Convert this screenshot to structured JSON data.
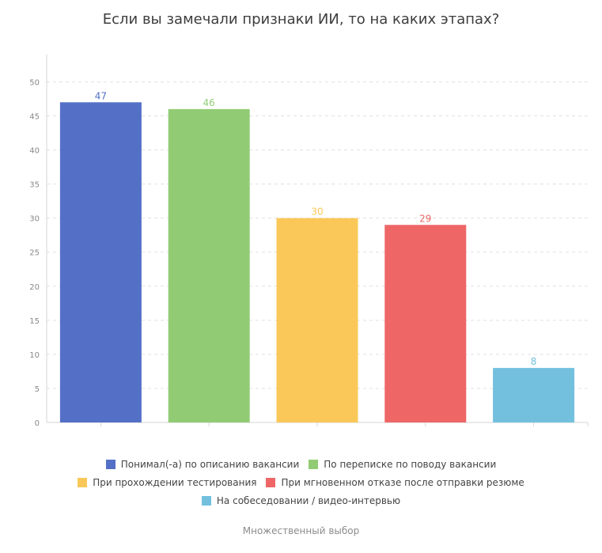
{
  "chart_data": {
    "type": "bar",
    "title": "Если вы замечали признаки ИИ, то на каких этапах?",
    "xlabel": "",
    "ylabel": "",
    "ylim": [
      0,
      54
    ],
    "yticks": [
      0,
      5,
      10,
      15,
      20,
      25,
      30,
      35,
      40,
      45,
      50
    ],
    "grid": true,
    "legend_position": "bottom",
    "categories": [
      "Понимал(-а) по описанию вакансии",
      "По переписке по поводу вакансии",
      "При прохождении тестирования",
      "При мгновенном отказе после отправки резюме",
      "На собеседовании / видео-интервью"
    ],
    "values": [
      47,
      46,
      30,
      29,
      8
    ],
    "colors": [
      "#5470c6",
      "#91cc75",
      "#fac858",
      "#ee6666",
      "#73c0de"
    ],
    "footnote": "Множественный выбор"
  }
}
